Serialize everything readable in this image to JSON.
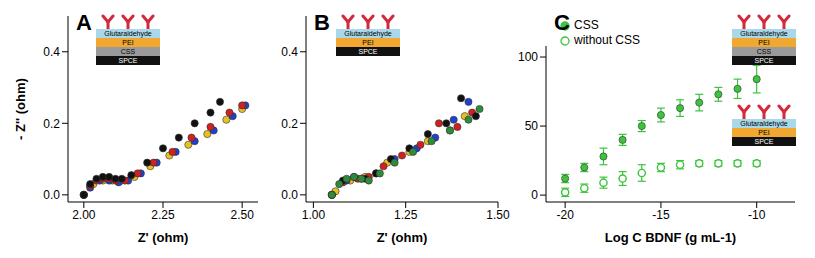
{
  "chart_data": [
    {
      "type": "scatter",
      "title": "A",
      "x_label": "Z' (ohm)",
      "y_label": "- Z'' (ohm)",
      "xlim": [
        1.95,
        2.55
      ],
      "xticks": [
        {
          "value": 2,
          "label": "2.00"
        },
        2.25,
        {
          "value": 2.5,
          "label": "2.50"
        }
      ],
      "ylim": [
        -0.02,
        0.5
      ],
      "yticks": [
        {
          "value": 0,
          "label": "0.0"
        },
        0.2,
        0.4
      ],
      "marker": "circle",
      "annotations": [
        [
          "Glutaraldehyde",
          "PEI",
          "CSS",
          "SPCE"
        ]
      ],
      "series": [
        {
          "color": "#e8c020",
          "x": [
            2.0,
            2.03,
            2.06,
            2.09,
            2.12,
            2.16,
            2.21,
            2.27,
            2.33,
            2.39,
            2.45,
            2.5
          ],
          "values": [
            0.0,
            0.03,
            0.04,
            0.04,
            0.04,
            0.05,
            0.08,
            0.11,
            0.14,
            0.17,
            0.21,
            0.24
          ]
        },
        {
          "color": "#2040d0",
          "x": [
            2.0,
            2.02,
            2.05,
            2.08,
            2.11,
            2.14,
            2.18,
            2.23,
            2.29,
            2.35,
            2.41,
            2.47,
            2.51
          ],
          "values": [
            0.0,
            0.02,
            0.04,
            0.04,
            0.035,
            0.04,
            0.06,
            0.09,
            0.12,
            0.15,
            0.18,
            0.22,
            0.25
          ]
        },
        {
          "color": "#d02020",
          "x": [
            2.0,
            2.02,
            2.04,
            2.06,
            2.08,
            2.1,
            2.13,
            2.17,
            2.22,
            2.28,
            2.34,
            2.4,
            2.46,
            2.5
          ],
          "values": [
            0.0,
            0.025,
            0.04,
            0.045,
            0.045,
            0.04,
            0.04,
            0.06,
            0.09,
            0.12,
            0.16,
            0.19,
            0.23,
            0.25
          ]
        },
        {
          "color": "#111111",
          "x": [
            2.0,
            2.02,
            2.04,
            2.06,
            2.08,
            2.1,
            2.12,
            2.15,
            2.2,
            2.25,
            2.3,
            2.35,
            2.4,
            2.43
          ],
          "values": [
            0.0,
            0.03,
            0.045,
            0.05,
            0.05,
            0.045,
            0.045,
            0.055,
            0.09,
            0.13,
            0.16,
            0.2,
            0.23,
            0.26
          ]
        }
      ]
    },
    {
      "type": "scatter",
      "title": "B",
      "x_label": "Z' (ohm)",
      "xlim": [
        0.98,
        1.5
      ],
      "xticks": [
        {
          "value": 1,
          "label": "1.00"
        },
        1.25,
        {
          "value": 1.5,
          "label": "1.50"
        }
      ],
      "ylim": [
        -0.02,
        0.5
      ],
      "yticks": [
        {
          "value": 0,
          "label": "0.0"
        },
        0.2,
        0.4
      ],
      "marker": "circle",
      "annotations": [
        [
          "Glutaraldehyde",
          "PEI",
          "SPCE"
        ]
      ],
      "series": [
        {
          "color": "#e8c020",
          "x": [
            1.06,
            1.1,
            1.14,
            1.2,
            1.26,
            1.31,
            1.37,
            1.41
          ],
          "values": [
            0.01,
            0.04,
            0.05,
            0.09,
            0.12,
            0.15,
            0.18,
            0.22
          ]
        },
        {
          "color": "#2040d0",
          "x": [
            1.05,
            1.09,
            1.13,
            1.17,
            1.22,
            1.28,
            1.33,
            1.38,
            1.42
          ],
          "values": [
            0.0,
            0.04,
            0.045,
            0.06,
            0.1,
            0.13,
            0.16,
            0.21,
            0.26
          ]
        },
        {
          "color": "#d02020",
          "x": [
            1.05,
            1.08,
            1.12,
            1.15,
            1.19,
            1.24,
            1.29,
            1.34,
            1.39,
            1.43
          ],
          "values": [
            0.0,
            0.035,
            0.045,
            0.05,
            0.08,
            0.11,
            0.14,
            0.2,
            0.19,
            0.23
          ]
        },
        {
          "color": "#111111",
          "x": [
            1.05,
            1.08,
            1.11,
            1.14,
            1.17,
            1.21,
            1.26,
            1.31,
            1.36,
            1.4,
            1.44
          ],
          "values": [
            0.0,
            0.04,
            0.05,
            0.045,
            0.06,
            0.1,
            0.13,
            0.17,
            0.2,
            0.27,
            0.22
          ]
        },
        {
          "color": "#2e8b3a",
          "x": [
            1.05,
            1.07,
            1.09,
            1.11,
            1.13,
            1.15,
            1.18,
            1.22,
            1.27,
            1.32,
            1.37,
            1.42,
            1.45
          ],
          "values": [
            0.0,
            0.03,
            0.045,
            0.05,
            0.045,
            0.04,
            0.06,
            0.09,
            0.12,
            0.15,
            0.18,
            0.21,
            0.24
          ]
        }
      ]
    },
    {
      "type": "scatter",
      "title": "C",
      "x_label": "Log C BDNF (g mL-1)",
      "xlim": [
        -21,
        -8
      ],
      "xticks": [
        -20,
        -15,
        -10
      ],
      "ylim": [
        -5,
        108
      ],
      "yticks": [
        0,
        50,
        100
      ],
      "legend": "top-left",
      "annotations": [
        [
          "Glutaraldehyde",
          "PEI",
          "CSS",
          "SPCE"
        ],
        [
          "Glutaraldehyde",
          "PEI",
          "SPCE"
        ]
      ],
      "x": [
        -20,
        -19,
        -18,
        -17,
        -16,
        -15,
        -14,
        -13,
        -12,
        -11,
        -10
      ],
      "series": [
        {
          "name": "CSS",
          "color": "#3cc43c",
          "marker": "circle",
          "values": [
            12,
            20,
            28,
            40,
            50,
            58,
            63,
            67,
            73,
            77,
            84
          ],
          "error": [
            3,
            3,
            6,
            4,
            4,
            5,
            6,
            6,
            5,
            7,
            10
          ]
        },
        {
          "name": "without CSS",
          "color": "#3cc43c",
          "marker": "open",
          "values": [
            2,
            5,
            9,
            12,
            16,
            20,
            22,
            23,
            23,
            23,
            23
          ],
          "error": [
            3,
            3,
            4,
            5,
            6,
            3,
            3,
            2,
            2,
            2,
            2
          ]
        }
      ]
    }
  ]
}
